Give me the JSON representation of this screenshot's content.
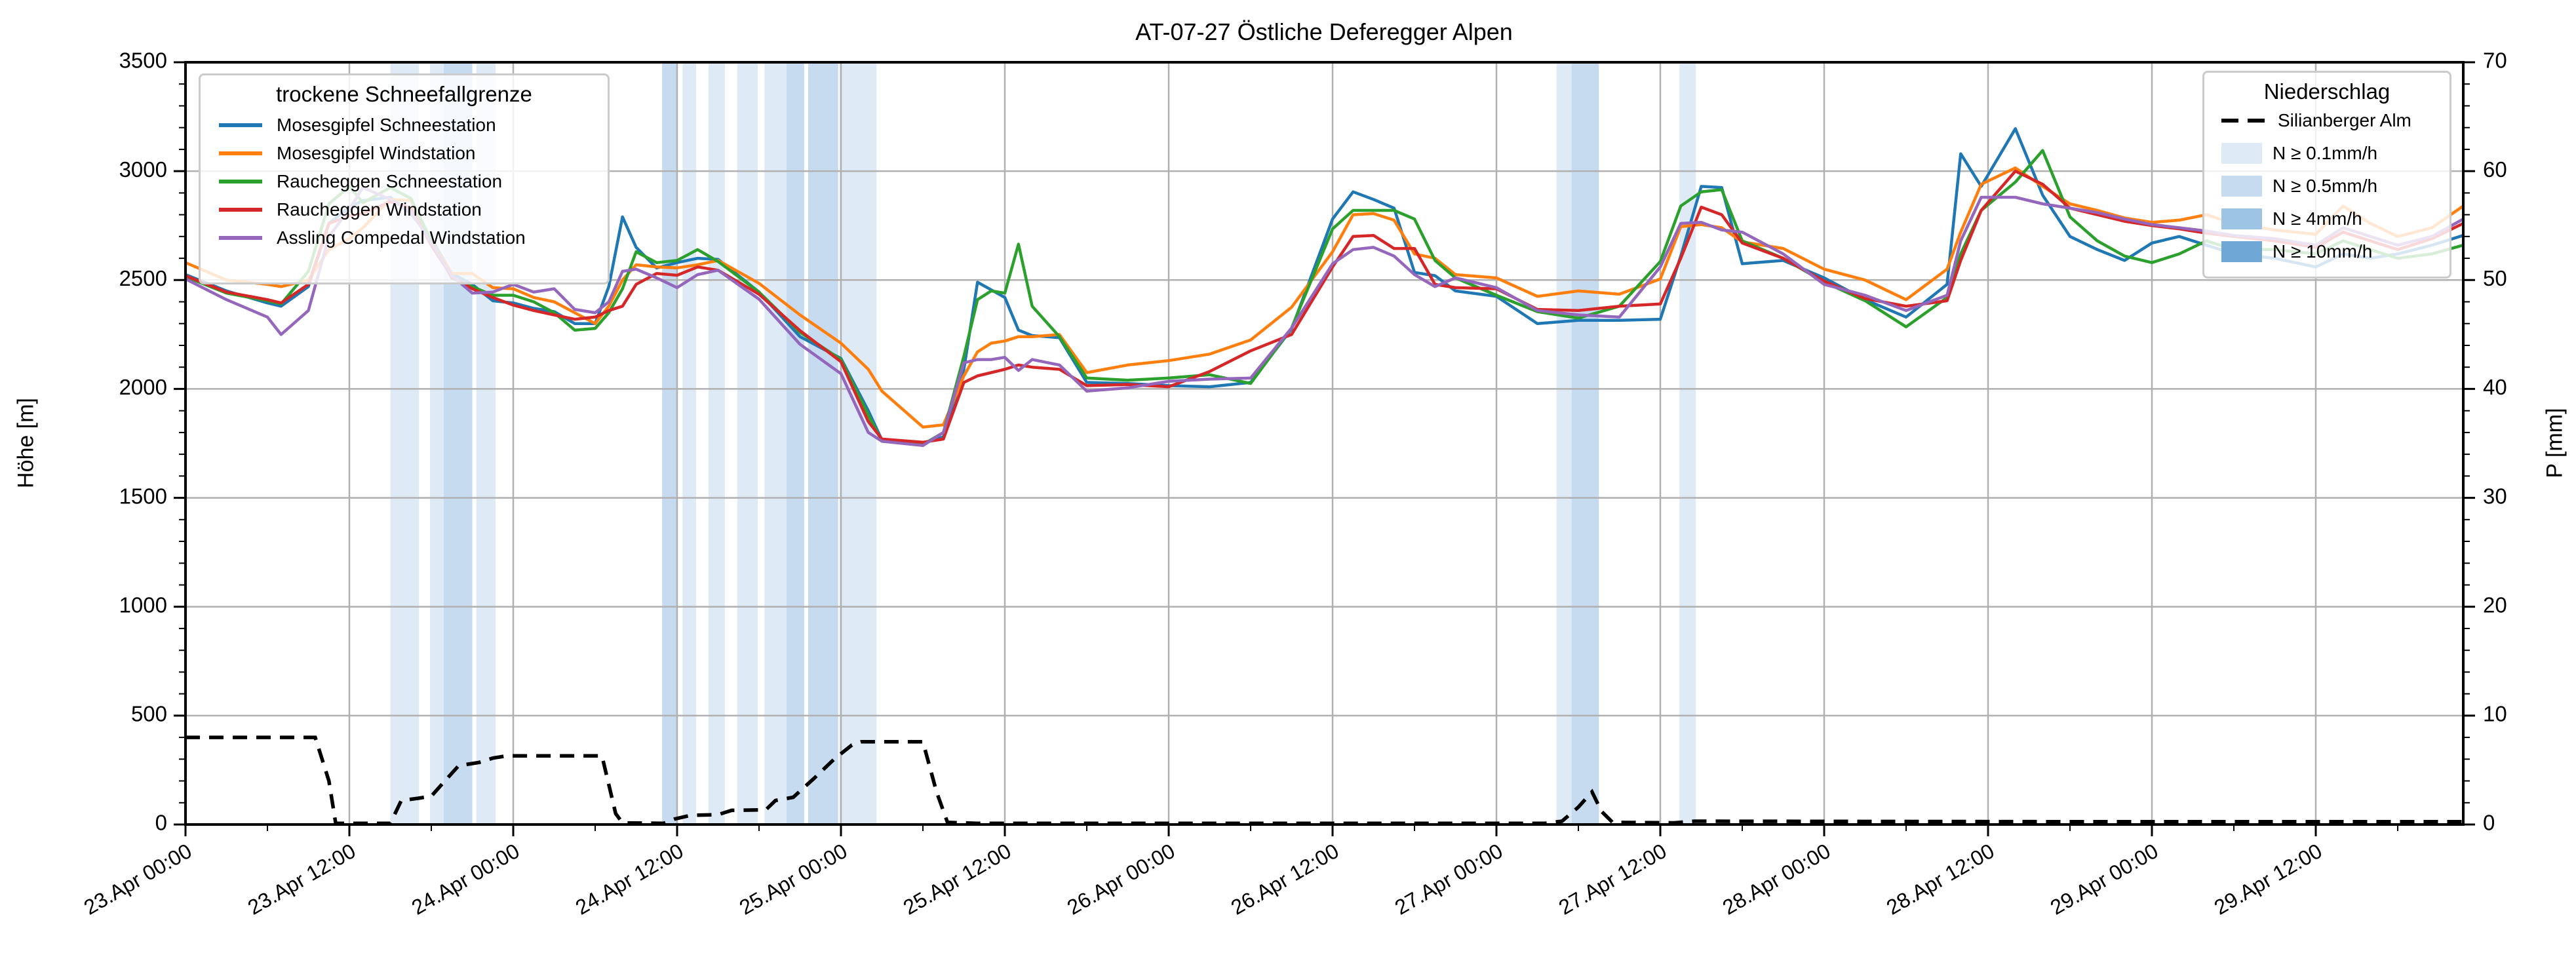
{
  "title": "AT-07-27 Östliche Deferegger Alpen",
  "axes": {
    "y_left": {
      "label": "Höhe [m]",
      "min": 0,
      "max": 3500,
      "major": 500,
      "minor": 100,
      "tick_labels": [
        "0",
        "500",
        "1000",
        "1500",
        "2000",
        "2500",
        "3000",
        "3500"
      ]
    },
    "y_right": {
      "label": "P [mm]",
      "min": 0,
      "max": 70,
      "major": 10,
      "minor": 2,
      "tick_labels": [
        "0",
        "10",
        "20",
        "30",
        "40",
        "50",
        "60",
        "70"
      ]
    },
    "x": {
      "t_min": 0,
      "t_max": 166.8,
      "major_step": 12,
      "minor_step": 6,
      "tick_labels": [
        "23.Apr 00:00",
        "23.Apr 12:00",
        "24.Apr 00:00",
        "24.Apr 12:00",
        "25.Apr 00:00",
        "25.Apr 12:00",
        "26.Apr 00:00",
        "26.Apr 12:00",
        "27.Apr 00:00",
        "27.Apr 12:00",
        "28.Apr 00:00",
        "28.Apr 12:00",
        "29.Apr 00:00",
        "29.Apr 12:00"
      ],
      "tick_hours": [
        0,
        12,
        24,
        36,
        48,
        60,
        72,
        84,
        96,
        108,
        120,
        132,
        144,
        156
      ]
    }
  },
  "legend_sfg": {
    "title": "trockene Schneefallgrenze",
    "entries": [
      {
        "label": "Mosesgipfel Schneestation",
        "color": "#1f77b4"
      },
      {
        "label": "Mosesgipfel Windstation",
        "color": "#ff7f0e"
      },
      {
        "label": "Raucheggen Schneestation",
        "color": "#2ca02c"
      },
      {
        "label": "Raucheggen Windstation",
        "color": "#d62728"
      },
      {
        "label": "Assling Compedal Windstation",
        "color": "#9467bd"
      }
    ]
  },
  "legend_precip": {
    "title": "Niederschlag",
    "line_entry": {
      "label": "Silianberger Alm",
      "color": "#000000",
      "style": "dashed"
    },
    "band_entries": [
      {
        "label": "N ≥ 0.1mm/h",
        "level": "0.1"
      },
      {
        "label": "N ≥ 0.5mm/h",
        "level": "0.5"
      },
      {
        "label": "N ≥ 4mm/h",
        "level": "4"
      },
      {
        "label": "N ≥ 10mm/h",
        "level": "10"
      }
    ]
  },
  "colors": {
    "grid": "#b0b0b0",
    "spine": "#000000",
    "text": "#000000",
    "band_levels": {
      "0.1": "#dfeaf7",
      "0.5": "#c6dbf0",
      "4": "#9dc4e5",
      "10": "#6fa8d4"
    }
  },
  "chart_data": {
    "type": "line",
    "title": "AT-07-27 Östliche Deferegger Alpen",
    "x_unit": "hours since 23.Apr 00:00",
    "ylabel_left": "Höhe [m]",
    "ylim_left": [
      0,
      3500
    ],
    "ylabel_right": "P [mm]",
    "ylim_right": [
      0,
      70
    ],
    "t": [
      0,
      3,
      6,
      7,
      9,
      10.5,
      12,
      13,
      15,
      16.5,
      18,
      19.5,
      21,
      22.5,
      24,
      25.5,
      27,
      28.5,
      30,
      31,
      32,
      33,
      34.5,
      36,
      37.5,
      39,
      42,
      45,
      48,
      50,
      51,
      54,
      55.5,
      57,
      58,
      59,
      60,
      61,
      62,
      64,
      66,
      69,
      72,
      75,
      78,
      81,
      84,
      85.5,
      87,
      88.5,
      90,
      91.5,
      93,
      96,
      99,
      102,
      105,
      108,
      109.5,
      111,
      112.5,
      114,
      117,
      120,
      123,
      126,
      129,
      130,
      131.5,
      134,
      136,
      138,
      140,
      142,
      144,
      146,
      148,
      150,
      153,
      156,
      158,
      160,
      162,
      164.5,
      166.8
    ],
    "series": [
      {
        "name": "Mosesgipfel Schneestation",
        "color": "#1f77b4",
        "values": [
          2525,
          2450,
          2395,
          2380,
          2470,
          2760,
          2835,
          2865,
          2880,
          2805,
          2690,
          2530,
          2480,
          2405,
          2395,
          2370,
          2355,
          2300,
          2300,
          2470,
          2790,
          2650,
          2555,
          2580,
          2600,
          2595,
          2445,
          2240,
          2140,
          1900,
          1765,
          1750,
          1780,
          2090,
          2490,
          2455,
          2420,
          2270,
          2245,
          2235,
          2030,
          2025,
          2015,
          2010,
          2030,
          2275,
          2780,
          2905,
          2870,
          2830,
          2535,
          2520,
          2450,
          2425,
          2300,
          2315,
          2315,
          2320,
          2610,
          2930,
          2925,
          2575,
          2590,
          2510,
          2410,
          2330,
          2480,
          3080,
          2930,
          3195,
          2890,
          2700,
          2640,
          2590,
          2670,
          2700,
          2660,
          2620,
          2600,
          2560,
          2620,
          2600,
          2620,
          2660,
          2705
        ]
      },
      {
        "name": "Mosesgipfel Windstation",
        "color": "#ff7f0e",
        "values": [
          2580,
          2500,
          2480,
          2470,
          2500,
          2640,
          2690,
          2740,
          2870,
          2865,
          2680,
          2530,
          2530,
          2465,
          2460,
          2420,
          2400,
          2350,
          2300,
          2380,
          2500,
          2570,
          2560,
          2556,
          2570,
          2590,
          2485,
          2340,
          2210,
          2090,
          1990,
          1825,
          1835,
          2060,
          2170,
          2210,
          2220,
          2240,
          2240,
          2250,
          2075,
          2110,
          2130,
          2160,
          2225,
          2375,
          2630,
          2800,
          2805,
          2775,
          2620,
          2600,
          2525,
          2510,
          2425,
          2450,
          2435,
          2505,
          2745,
          2755,
          2740,
          2675,
          2645,
          2550,
          2500,
          2410,
          2550,
          2720,
          2940,
          3015,
          2930,
          2850,
          2820,
          2785,
          2765,
          2775,
          2800,
          2760,
          2730,
          2710,
          2840,
          2760,
          2700,
          2740,
          2840
        ]
      },
      {
        "name": "Raucheggen Schneestation",
        "color": "#2ca02c",
        "values": [
          2515,
          2440,
          2405,
          2390,
          2540,
          2850,
          2930,
          2855,
          2925,
          2875,
          2680,
          2510,
          2470,
          2430,
          2430,
          2400,
          2350,
          2270,
          2278,
          2350,
          2460,
          2630,
          2580,
          2590,
          2640,
          2585,
          2445,
          2260,
          2135,
          1880,
          1760,
          1745,
          1800,
          2150,
          2410,
          2450,
          2440,
          2665,
          2380,
          2240,
          2050,
          2040,
          2050,
          2065,
          2025,
          2280,
          2735,
          2820,
          2820,
          2820,
          2780,
          2590,
          2510,
          2430,
          2355,
          2325,
          2380,
          2585,
          2840,
          2905,
          2915,
          2680,
          2600,
          2490,
          2405,
          2285,
          2420,
          2620,
          2820,
          2950,
          3095,
          2790,
          2680,
          2610,
          2580,
          2620,
          2680,
          2640,
          2640,
          2620,
          2680,
          2640,
          2600,
          2620,
          2660
        ]
      },
      {
        "name": "Raucheggen Windstation",
        "color": "#d62728",
        "values": [
          2520,
          2445,
          2410,
          2395,
          2480,
          2760,
          2795,
          2805,
          2860,
          2830,
          2660,
          2515,
          2460,
          2420,
          2385,
          2360,
          2340,
          2320,
          2330,
          2360,
          2380,
          2480,
          2530,
          2522,
          2560,
          2545,
          2435,
          2268,
          2125,
          1850,
          1770,
          1755,
          1770,
          2030,
          2060,
          2075,
          2090,
          2110,
          2100,
          2090,
          2015,
          2020,
          2010,
          2080,
          2175,
          2250,
          2560,
          2700,
          2705,
          2645,
          2645,
          2480,
          2465,
          2460,
          2365,
          2360,
          2380,
          2390,
          2600,
          2835,
          2800,
          2670,
          2600,
          2495,
          2415,
          2380,
          2405,
          2590,
          2820,
          3000,
          2940,
          2830,
          2800,
          2770,
          2750,
          2735,
          2715,
          2700,
          2680,
          2650,
          2720,
          2680,
          2640,
          2690,
          2760
        ]
      },
      {
        "name": "Assling Compedal Windstation",
        "color": "#9467bd",
        "values": [
          2505,
          2410,
          2330,
          2250,
          2360,
          2700,
          2825,
          2925,
          2870,
          2815,
          2670,
          2520,
          2440,
          2445,
          2480,
          2445,
          2460,
          2365,
          2350,
          2400,
          2540,
          2550,
          2510,
          2465,
          2525,
          2545,
          2412,
          2205,
          2070,
          1800,
          1760,
          1740,
          1800,
          2120,
          2135,
          2135,
          2145,
          2085,
          2135,
          2110,
          1990,
          2005,
          2035,
          2045,
          2050,
          2280,
          2575,
          2640,
          2650,
          2610,
          2525,
          2470,
          2510,
          2465,
          2360,
          2340,
          2330,
          2560,
          2760,
          2765,
          2730,
          2720,
          2620,
          2480,
          2430,
          2360,
          2430,
          2680,
          2880,
          2880,
          2850,
          2830,
          2810,
          2780,
          2755,
          2740,
          2725,
          2705,
          2690,
          2660,
          2740,
          2700,
          2660,
          2700,
          2780
        ]
      }
    ],
    "precip_line": {
      "name": "Silianberger Alm",
      "axis": "right",
      "style": "dashed",
      "color": "#000000",
      "points": [
        [
          0,
          8
        ],
        [
          9.5,
          8
        ],
        [
          10.5,
          4
        ],
        [
          11,
          0.1
        ],
        [
          15,
          0.1
        ],
        [
          15.8,
          2.2
        ],
        [
          17,
          2.4
        ],
        [
          18,
          2.6
        ],
        [
          19,
          4.0
        ],
        [
          20,
          5.4
        ],
        [
          21.5,
          5.7
        ],
        [
          22.5,
          6.1
        ],
        [
          23.5,
          6.3
        ],
        [
          30.5,
          6.3
        ],
        [
          31.5,
          1.0
        ],
        [
          32,
          0.15
        ],
        [
          35,
          0.1
        ],
        [
          35.8,
          0.5
        ],
        [
          37,
          0.85
        ],
        [
          39,
          0.9
        ],
        [
          40,
          1.3
        ],
        [
          42.5,
          1.35
        ],
        [
          43.2,
          2.2
        ],
        [
          44.5,
          2.5
        ],
        [
          46,
          4.2
        ],
        [
          47.5,
          6.0
        ],
        [
          48.8,
          7.3
        ],
        [
          49.5,
          7.6
        ],
        [
          54,
          7.6
        ],
        [
          55,
          3.0
        ],
        [
          55.8,
          0.2
        ],
        [
          58,
          0.1
        ],
        [
          99.5,
          0.1
        ],
        [
          100.8,
          0.3
        ],
        [
          102,
          1.6
        ],
        [
          103,
          3.0
        ],
        [
          103.7,
          1.2
        ],
        [
          104.5,
          0.2
        ],
        [
          109,
          0.15
        ],
        [
          110.5,
          0.3
        ],
        [
          140,
          0.25
        ],
        [
          166.8,
          0.25
        ]
      ]
    },
    "precip_bands": [
      [
        15,
        16.2,
        "0.1"
      ],
      [
        16.2,
        17.1,
        "0.1"
      ],
      [
        17.9,
        18.9,
        "0.1"
      ],
      [
        18.9,
        21,
        "0.5"
      ],
      [
        21.3,
        22.7,
        "0.1"
      ],
      [
        34.9,
        36,
        "0.5"
      ],
      [
        36.4,
        37.4,
        "0.1"
      ],
      [
        38.3,
        39.5,
        "0.1"
      ],
      [
        40.4,
        41.9,
        "0.1"
      ],
      [
        42.4,
        44,
        "0.1"
      ],
      [
        44,
        45.3,
        "0.5"
      ],
      [
        45.6,
        47.8,
        "0.5"
      ],
      [
        47.9,
        50.6,
        "0.1"
      ],
      [
        100.4,
        101.5,
        "0.1"
      ],
      [
        101.5,
        103.5,
        "0.5"
      ],
      [
        109.4,
        110.6,
        "0.1"
      ]
    ],
    "layout": {
      "grid": true,
      "legend_positions": [
        "upper left",
        "upper right"
      ]
    }
  }
}
